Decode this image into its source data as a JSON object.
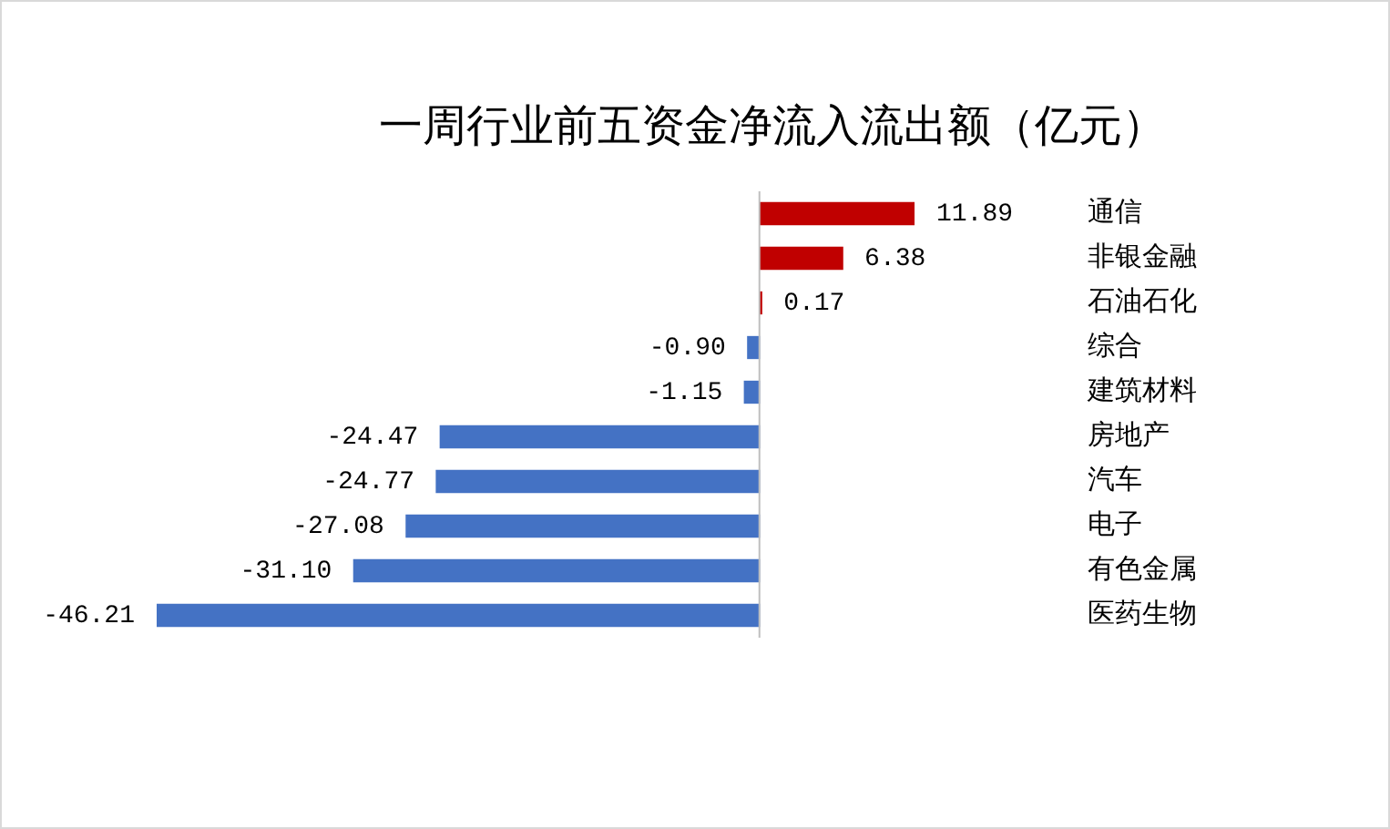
{
  "chart_data": {
    "type": "bar",
    "orientation": "horizontal",
    "title": "一周行业前五资金净流入流出额（亿元）",
    "categories": [
      "通信",
      "非银金融",
      "石油石化",
      "综合",
      "建筑材料",
      "房地产",
      "汽车",
      "电子",
      "有色金属",
      "医药生物"
    ],
    "values": [
      11.89,
      6.38,
      0.17,
      -0.9,
      -1.15,
      -24.47,
      -24.77,
      -27.08,
      -31.1,
      -46.21
    ],
    "colors": [
      "#c00000",
      "#c00000",
      "#c00000",
      "#4472c4",
      "#4472c4",
      "#4472c4",
      "#4472c4",
      "#4472c4",
      "#4472c4",
      "#4472c4"
    ],
    "value_labels": [
      "11.89",
      "6.38",
      "0.17",
      "-0.90",
      "-1.15",
      "-24.47",
      "-24.77",
      "-27.08",
      "-31.10",
      "-46.21"
    ],
    "grid": false,
    "legend": false
  }
}
